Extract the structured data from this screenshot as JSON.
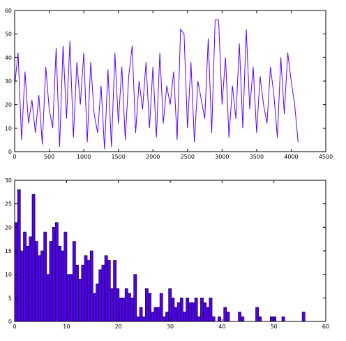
{
  "chart_data": [
    {
      "type": "line",
      "color": "#5f00ff",
      "x": [
        0,
        50,
        100,
        150,
        200,
        250,
        300,
        350,
        400,
        450,
        500,
        550,
        600,
        650,
        700,
        750,
        800,
        850,
        900,
        950,
        1000,
        1050,
        1100,
        1150,
        1200,
        1250,
        1300,
        1350,
        1400,
        1450,
        1500,
        1550,
        1600,
        1650,
        1700,
        1750,
        1800,
        1850,
        1900,
        1950,
        2000,
        2050,
        2100,
        2150,
        2200,
        2250,
        2300,
        2350,
        2400,
        2450,
        2500,
        2550,
        2600,
        2650,
        2700,
        2750,
        2800,
        2850,
        2900,
        2950,
        3000,
        3050,
        3100,
        3150,
        3200,
        3250,
        3300,
        3350,
        3400,
        3450,
        3500,
        3550,
        3600,
        3650,
        3700,
        3750,
        3800,
        3850,
        3900,
        3950,
        4000,
        4050,
        4100
      ],
      "values": [
        28,
        42,
        5,
        34,
        12,
        22,
        8,
        24,
        3,
        36,
        18,
        10,
        44,
        2,
        45,
        14,
        47,
        6,
        38,
        20,
        42,
        4,
        38,
        16,
        8,
        28,
        1,
        35,
        2,
        42,
        12,
        36,
        5,
        32,
        45,
        8,
        30,
        18,
        38,
        10,
        36,
        6,
        42,
        12,
        28,
        20,
        34,
        5,
        52,
        50,
        10,
        38,
        4,
        30,
        22,
        14,
        48,
        8,
        56,
        56,
        20,
        40,
        6,
        28,
        14,
        46,
        10,
        52,
        18,
        36,
        8,
        32,
        20,
        12,
        36,
        24,
        6,
        40,
        16,
        42,
        30,
        20,
        4
      ],
      "xlim": [
        0,
        4500
      ],
      "ylim": [
        0,
        60
      ],
      "xticks": [
        0,
        500,
        1000,
        1500,
        2000,
        2500,
        3000,
        3500,
        4000,
        4500
      ],
      "yticks": [
        0,
        10,
        20,
        30,
        40,
        50,
        60
      ]
    },
    {
      "type": "histogram",
      "color": "#5200f0",
      "bins": [
        0,
        0.56,
        1.12,
        1.68,
        2.24,
        2.8,
        3.36,
        3.92,
        4.48,
        5.04,
        5.6,
        6.16,
        6.72,
        7.28,
        7.84,
        8.4,
        8.96,
        9.52,
        10.08,
        10.64,
        11.2,
        11.76,
        12.32,
        12.88,
        13.44,
        14,
        14.56,
        15.12,
        15.68,
        16.24,
        16.8,
        17.36,
        17.92,
        18.48,
        19.04,
        19.6,
        20.16,
        20.72,
        21.28,
        21.84,
        22.4,
        22.96,
        23.52,
        24.08,
        24.64,
        25.2,
        25.76,
        26.32,
        26.88,
        27.44,
        28,
        28.56,
        29.12,
        29.68,
        30.24,
        30.8,
        31.36,
        31.92,
        32.48,
        33.04,
        33.6,
        34.16,
        34.72,
        35.28,
        35.84,
        36.4,
        36.96,
        37.52,
        38.08,
        38.64,
        39.2,
        39.76,
        40.32,
        40.88,
        41.44,
        42,
        42.56,
        43.12,
        43.68,
        44.24,
        44.8,
        45.36,
        45.92,
        46.48,
        47.04,
        47.6,
        48.16,
        48.72,
        49.28,
        49.84,
        50.4,
        50.96,
        51.52,
        52.08,
        52.64,
        53.2,
        53.76,
        54.32,
        54.88,
        55.44,
        56
      ],
      "values": [
        21,
        28,
        15,
        19,
        16,
        18,
        27,
        17,
        14,
        15,
        19,
        10,
        17,
        20,
        21,
        16,
        15,
        19,
        10,
        10,
        17,
        12,
        9,
        12,
        14,
        13,
        15,
        6,
        8,
        11,
        12,
        14,
        13,
        7,
        13,
        7,
        5,
        5,
        7,
        6,
        5,
        10,
        1,
        3,
        1,
        7,
        6,
        2,
        3,
        3,
        6,
        1,
        2,
        7,
        5,
        3,
        4,
        5,
        2,
        5,
        4,
        4,
        5,
        1,
        5,
        4,
        3,
        5,
        1,
        0,
        1,
        0,
        3,
        2,
        0,
        0,
        0,
        2,
        1,
        0,
        0,
        0,
        0,
        3,
        1,
        0,
        0,
        0,
        1,
        1,
        0,
        0,
        1,
        0,
        0,
        0,
        0,
        0,
        0,
        2
      ],
      "xlim": [
        0,
        60
      ],
      "ylim": [
        0,
        30
      ],
      "xticks": [
        0,
        10,
        20,
        30,
        40,
        50,
        60
      ],
      "yticks": [
        0,
        5,
        10,
        15,
        20,
        25,
        30
      ]
    }
  ]
}
